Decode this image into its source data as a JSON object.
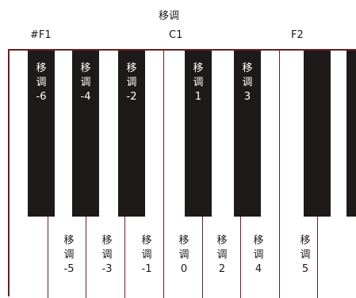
{
  "header": {
    "title": "移调",
    "labels": [
      "#F1",
      "C1",
      "F2"
    ]
  },
  "keyboard": {
    "black_keys": [
      {
        "line1": "移",
        "line2": "调",
        "value": "-6"
      },
      {
        "line1": "移",
        "line2": "调",
        "value": "-4"
      },
      {
        "line1": "移",
        "line2": "调",
        "value": "-2"
      },
      {
        "line1": "移",
        "line2": "调",
        "value": "1"
      },
      {
        "line1": "移",
        "line2": "调",
        "value": "3"
      },
      {
        "line1": "",
        "line2": "",
        "value": ""
      },
      {
        "line1": "",
        "line2": "",
        "value": ""
      }
    ],
    "white_keys": [
      {
        "line1": "移",
        "line2": "调",
        "value": "-5"
      },
      {
        "line1": "移",
        "line2": "调",
        "value": "-3"
      },
      {
        "line1": "移",
        "line2": "调",
        "value": "-1"
      },
      {
        "line1": "移",
        "line2": "调",
        "value": "0"
      },
      {
        "line1": "移",
        "line2": "调",
        "value": "2"
      },
      {
        "line1": "移",
        "line2": "调",
        "value": "4"
      },
      {
        "line1": "移",
        "line2": "调",
        "value": "5"
      }
    ]
  },
  "colors": {
    "key_border": "#6b1f1f",
    "black_key": "#1f1a1a"
  }
}
